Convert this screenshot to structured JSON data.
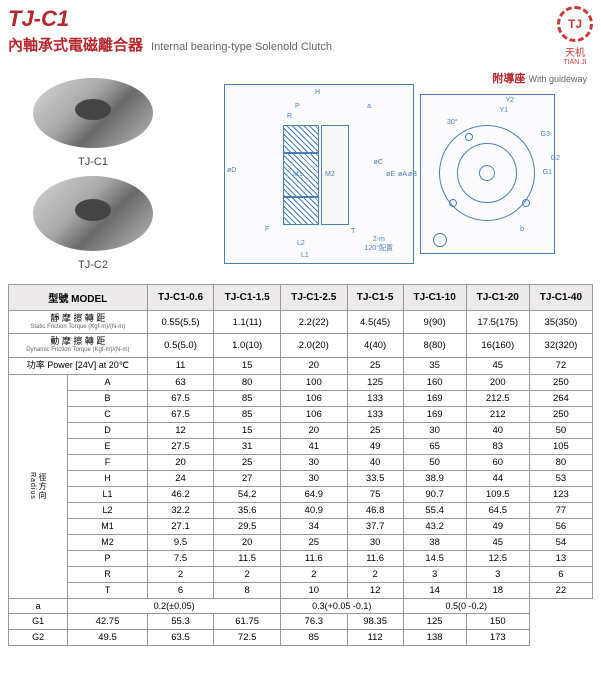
{
  "header": {
    "code": "TJ-C1",
    "cn_sub": "內軸承式電磁離合器",
    "en_sub": "Internal bearing-type Solenold Clutch",
    "logo_mark": "TJ",
    "logo_cn": "天机",
    "logo_en": "TIAN JI"
  },
  "photos": {
    "label1": "TJ-C1",
    "label2": "TJ-C2"
  },
  "diagram": {
    "guideway_cn": "附導座",
    "guideway_en": "With guideway",
    "schematic_note": "2-m\n120°配置",
    "labels": [
      "H",
      "P",
      "R",
      "a",
      "øD",
      "M1",
      "M2",
      "øC",
      "øE",
      "øA",
      "øB",
      "T",
      "L1",
      "L2",
      "F",
      "Y2",
      "Y1",
      "30°",
      "G3",
      "G1",
      "G2",
      "b"
    ]
  },
  "table": {
    "model_label": "型號 MODEL",
    "models": [
      "TJ-C1-0.6",
      "TJ-C1-1.5",
      "TJ-C1-2.5",
      "TJ-C1-5",
      "TJ-C1-10",
      "TJ-C1-20",
      "TJ-C1-40"
    ],
    "params": [
      {
        "cn": "靜 摩 擦 轉 距",
        "en": "Static Friction Torque  (Kgf-m)/(N-m)",
        "vals": [
          "0.55(5.5)",
          "1.1(11)",
          "2.2(22)",
          "4.5(45)",
          "9(90)",
          "17.5(175)",
          "35(350)"
        ]
      },
      {
        "cn": "動 摩 擦 轉 距",
        "en": "Dynamic Friction Torque  (Kgf-m)/(N-m)",
        "vals": [
          "0.5(5.0)",
          "1.0(10)",
          "2.0(20)",
          "4(40)",
          "8(80)",
          "16(160)",
          "32(320)"
        ]
      },
      {
        "cn": "功率  Power  [24V] at 20℃",
        "en": "",
        "vals": [
          "11",
          "15",
          "20",
          "25",
          "35",
          "45",
          "72"
        ]
      }
    ],
    "radius_cn": "徑方向",
    "radius_en": "Radius",
    "dims": [
      {
        "k": "A",
        "v": [
          "63",
          "80",
          "100",
          "125",
          "160",
          "200",
          "250"
        ]
      },
      {
        "k": "B",
        "v": [
          "67.5",
          "85",
          "106",
          "133",
          "169",
          "212.5",
          "264"
        ]
      },
      {
        "k": "C",
        "v": [
          "67.5",
          "85",
          "106",
          "133",
          "169",
          "212",
          "250"
        ]
      },
      {
        "k": "D",
        "v": [
          "12",
          "15",
          "20",
          "25",
          "30",
          "40",
          "50"
        ]
      },
      {
        "k": "E",
        "v": [
          "27.5",
          "31",
          "41",
          "49",
          "65",
          "83",
          "105"
        ]
      },
      {
        "k": "F",
        "v": [
          "20",
          "25",
          "30",
          "40",
          "50",
          "60",
          "80"
        ]
      },
      {
        "k": "H",
        "v": [
          "24",
          "27",
          "30",
          "33.5",
          "38.9",
          "44",
          "53"
        ]
      },
      {
        "k": "L1",
        "v": [
          "46.2",
          "54.2",
          "64.9",
          "75",
          "90.7",
          "109.5",
          "123"
        ]
      },
      {
        "k": "L2",
        "v": [
          "32.2",
          "35.6",
          "40.9",
          "46.8",
          "55.4",
          "64.5",
          "77"
        ]
      },
      {
        "k": "M1",
        "v": [
          "27.1",
          "29.5",
          "34",
          "37.7",
          "43.2",
          "49",
          "56"
        ]
      },
      {
        "k": "M2",
        "v": [
          "9.5",
          "20",
          "25",
          "30",
          "38",
          "45",
          "54"
        ]
      },
      {
        "k": "P",
        "v": [
          "7.5",
          "11.5",
          "11.6",
          "11.6",
          "14.5",
          "12.5",
          "13"
        ]
      },
      {
        "k": "R",
        "v": [
          "2",
          "2",
          "2",
          "2",
          "3",
          "3",
          "6"
        ]
      },
      {
        "k": "T",
        "v": [
          "6",
          "8",
          "10",
          "12",
          "14",
          "18",
          "22"
        ]
      }
    ],
    "a_row": {
      "k": "a",
      "groups": [
        {
          "span": 3,
          "text": "0.2(±0.05)"
        },
        {
          "span": 2,
          "text": "0.3(+0.05 -0.1)"
        },
        {
          "span": 2,
          "text": "0.5(0 -0.2)"
        }
      ]
    },
    "g_rows": [
      {
        "k": "G1",
        "v": [
          "42.75",
          "55.3",
          "61.75",
          "76.3",
          "98.35",
          "125",
          "150"
        ]
      },
      {
        "k": "G2",
        "v": [
          "49.5",
          "63.5",
          "72.5",
          "85",
          "112",
          "138",
          "173"
        ]
      }
    ]
  },
  "colors": {
    "accent": "#b5272d",
    "blue": "#4a7fb5",
    "border": "#999999",
    "header_bg": "#e4e4e4"
  }
}
